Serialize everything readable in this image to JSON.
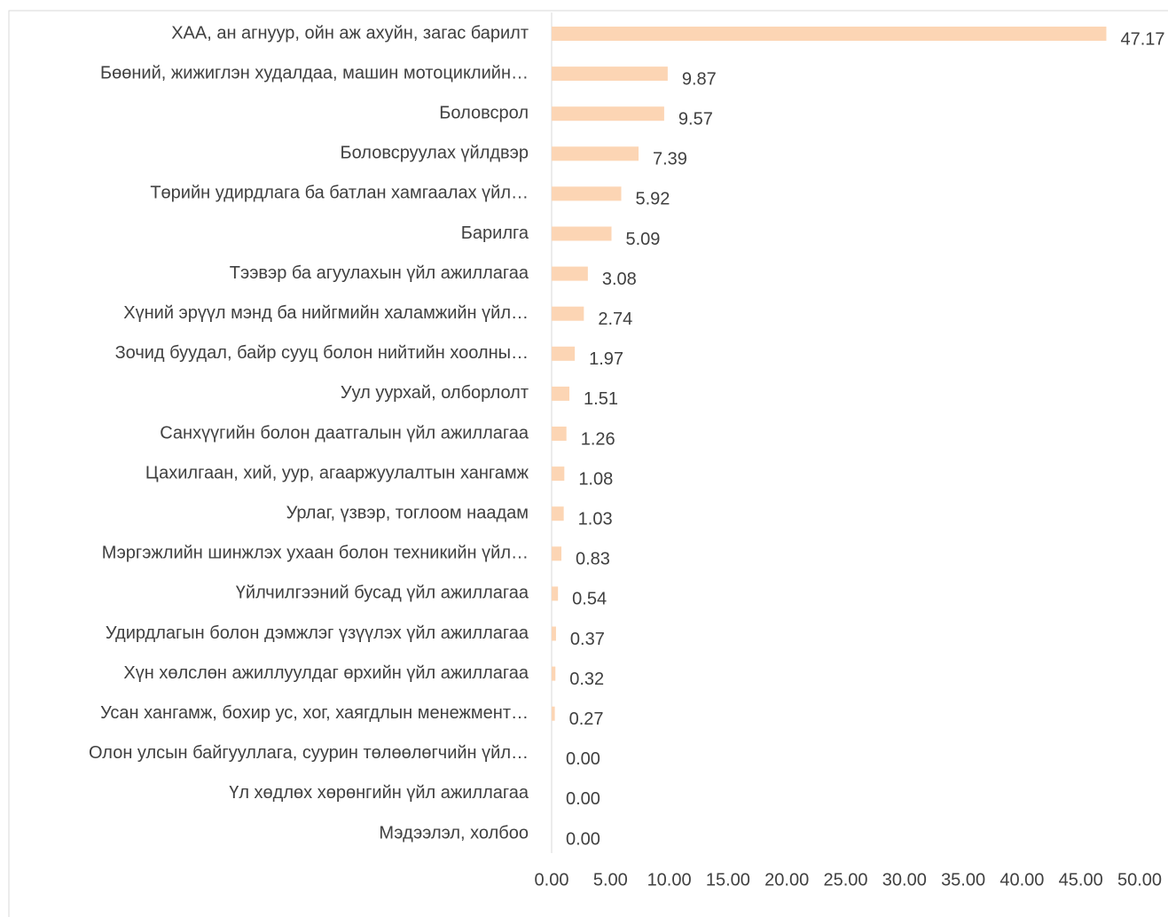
{
  "chart_data": {
    "type": "bar",
    "orientation": "horizontal",
    "color": "#fcd5b4",
    "categories": [
      "ХАА, ан агнуур, ойн аж ахуйн, загас барилт",
      "Бөөний, жижиглэн худалдаа, машин мотоциклийн…",
      "Боловсрол",
      "Боловсруулах үйлдвэр",
      "Төрийн удирдлага ба батлан хамгаалах үйл…",
      "Барилга",
      "Тээвэр ба агуулахын үйл ажиллагаа",
      "Хүний эрүүл мэнд ба нийгмийн халамжийн үйл…",
      "Зочид буудал, байр сууц болон нийтийн хоолны…",
      "Уул уурхай, олборлолт",
      "Санхүүгийн болон даатгалын үйл ажиллагаа",
      "Цахилгаан, хий, уур, агааржуулалтын хангамж",
      "Урлаг, үзвэр, тоглоом наадам",
      "Мэргэжлийн шинжлэх ухаан болон техникийн үйл…",
      "Үйлчилгээний бусад үйл ажиллагаа",
      "Удирдлагын болон дэмжлэг үзүүлэх үйл ажиллагаа",
      "Хүн хөлслөн ажиллуулдаг өрхийн үйл ажиллагаа",
      "Усан хангамж, бохир ус, хог, хаягдлын менежмент…",
      "Олон улсын байгууллага, суурин төлөөлөгчийн үйл…",
      "Үл хөдлөх хөрөнгийн үйл ажиллагаа",
      "Мэдээлэл, холбоо"
    ],
    "values": [
      47.17,
      9.87,
      9.57,
      7.39,
      5.92,
      5.09,
      3.08,
      2.74,
      1.97,
      1.51,
      1.26,
      1.08,
      1.03,
      0.83,
      0.54,
      0.37,
      0.32,
      0.27,
      0,
      0,
      0
    ],
    "value_labels": [
      "47.17",
      "9.87",
      "9.57",
      "7.39",
      "5.92",
      "5.09",
      "3.08",
      "2.74",
      "1.97",
      "1.51",
      "1.26",
      "1.08",
      "1.03",
      "0.83",
      "0.54",
      "0.37",
      "0.32",
      "0.27",
      "0.00",
      "0.00",
      "0.00"
    ],
    "xlim": [
      0,
      50
    ],
    "xticks": [
      {
        "value": 0,
        "label": "0.00"
      },
      {
        "value": 5,
        "label": "5.00"
      },
      {
        "value": 10,
        "label": "10.00"
      },
      {
        "value": 15,
        "label": "15.00"
      },
      {
        "value": 20,
        "label": "20.00"
      },
      {
        "value": 25,
        "label": "25.00"
      },
      {
        "value": 30,
        "label": "30.00"
      },
      {
        "value": 35,
        "label": "35.00"
      },
      {
        "value": 40,
        "label": "40.00"
      },
      {
        "value": 45,
        "label": "45.00"
      },
      {
        "value": 50,
        "label": "50.00"
      }
    ]
  }
}
